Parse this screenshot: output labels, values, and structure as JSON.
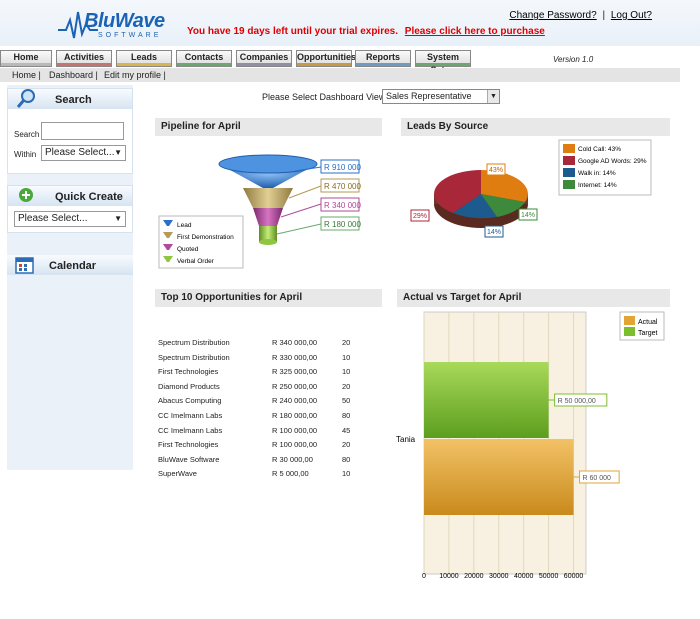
{
  "header": {
    "logo_text": "BluWave",
    "logo_sub": "SOFTWARE",
    "trial_text": "You have 19 days left until your trial expires.",
    "purchase_link": "Please click here to purchase",
    "change_password": "Change Password?",
    "logout": "Log Out?",
    "separator": "|"
  },
  "nav": {
    "tabs": [
      {
        "label": "Home",
        "color": "#b9b9b9"
      },
      {
        "label": "Activities",
        "color": "#c9736e"
      },
      {
        "label": "Leads",
        "color": "#d8b64d"
      },
      {
        "label": "Contacts",
        "color": "#6aa86d"
      },
      {
        "label": "Companies",
        "color": "#8f8fa8"
      },
      {
        "label": "Opportunities",
        "color": "#c89a44"
      },
      {
        "label": "Reports",
        "color": "#6e9bc4"
      },
      {
        "label": "System Setup",
        "color": "#6aa86d"
      }
    ],
    "version": "Version 1.0"
  },
  "subnav": {
    "items": [
      "Home |",
      "Dashboard |",
      "Edit my profile |"
    ]
  },
  "sidebar": {
    "search_title": "Search",
    "search_label": "Search",
    "within_label": "Within",
    "within_value": "Please Select...",
    "quick_create_title": "Quick Create",
    "quick_create_value": "Please Select...",
    "calendar_title": "Calendar"
  },
  "dashboard": {
    "view_label": "Please Select Dashboard View",
    "view_value": "Sales Representative"
  },
  "panels": {
    "pipeline": "Pipeline for April",
    "leads_source": "Leads By Source",
    "top10": "Top 10 Opportunities for April",
    "actual_target": "Actual vs Target for April"
  },
  "pipeline": {
    "stages": [
      "Lead",
      "First Demonstration",
      "Quoted",
      "Verbal Order"
    ],
    "colors": [
      "#2a6fc9",
      "#b59a55",
      "#b04a9c",
      "#8ec63f"
    ],
    "values": [
      "R 910 000",
      "R 470 000",
      "R 340 000",
      "R 180 000"
    ]
  },
  "leads_by_source": {
    "legend": [
      "Cold Call: 43%",
      "Google AD Words: 29%",
      "Walk in: 14%",
      "Internet: 14%"
    ],
    "colors": [
      "#e07d10",
      "#a8283a",
      "#1d5b8f",
      "#3d8a3d"
    ],
    "labels": [
      "43%",
      "29%",
      "14%",
      "14%"
    ]
  },
  "opportunities": [
    {
      "name": "Spectrum Distribution",
      "amount": "R 340 000,00",
      "prob": "20"
    },
    {
      "name": "Spectrum Distribution",
      "amount": "R 330 000,00",
      "prob": "10"
    },
    {
      "name": "First Technologies",
      "amount": "R 325 000,00",
      "prob": "10"
    },
    {
      "name": "Diamond Products",
      "amount": "R 250 000,00",
      "prob": "20"
    },
    {
      "name": "Abacus Computing",
      "amount": "R 240 000,00",
      "prob": "50"
    },
    {
      "name": "CC Imelmann Labs",
      "amount": "R 180 000,00",
      "prob": "80"
    },
    {
      "name": "CC Imelmann Labs",
      "amount": "R 100 000,00",
      "prob": "45"
    },
    {
      "name": "First Technologies",
      "amount": "R 100 000,00",
      "prob": "20"
    },
    {
      "name": "BluWave Software",
      "amount": "R 30 000,00",
      "prob": "80"
    },
    {
      "name": "SuperWave",
      "amount": "R 5 000,00",
      "prob": "10"
    }
  ],
  "chart_data": [
    {
      "type": "bar",
      "title": "Pipeline for April",
      "categories": [
        "Lead",
        "First Demonstration",
        "Quoted",
        "Verbal Order"
      ],
      "values": [
        910000,
        470000,
        340000,
        180000
      ],
      "value_labels": [
        "R 910 000",
        "R 470 000",
        "R 340 000",
        "R 180 000"
      ]
    },
    {
      "type": "pie",
      "title": "Leads By Source",
      "categories": [
        "Cold Call",
        "Google AD Words",
        "Walk in",
        "Internet"
      ],
      "values": [
        43,
        29,
        14,
        14
      ]
    },
    {
      "type": "bar",
      "title": "Actual vs Target for April",
      "categories": [
        "Tania"
      ],
      "series": [
        {
          "name": "Target",
          "values": [
            50000
          ],
          "label": "R 50 000,00",
          "color": "#7cbf2e"
        },
        {
          "name": "Actual",
          "values": [
            60000
          ],
          "label": "R 60 000",
          "color": "#e0a535"
        }
      ],
      "xlim": [
        0,
        65000
      ],
      "ticks": [
        "0",
        "10000",
        "20000",
        "30000",
        "40000",
        "50000",
        "60000"
      ],
      "grid": true,
      "legend": "top-right"
    }
  ]
}
